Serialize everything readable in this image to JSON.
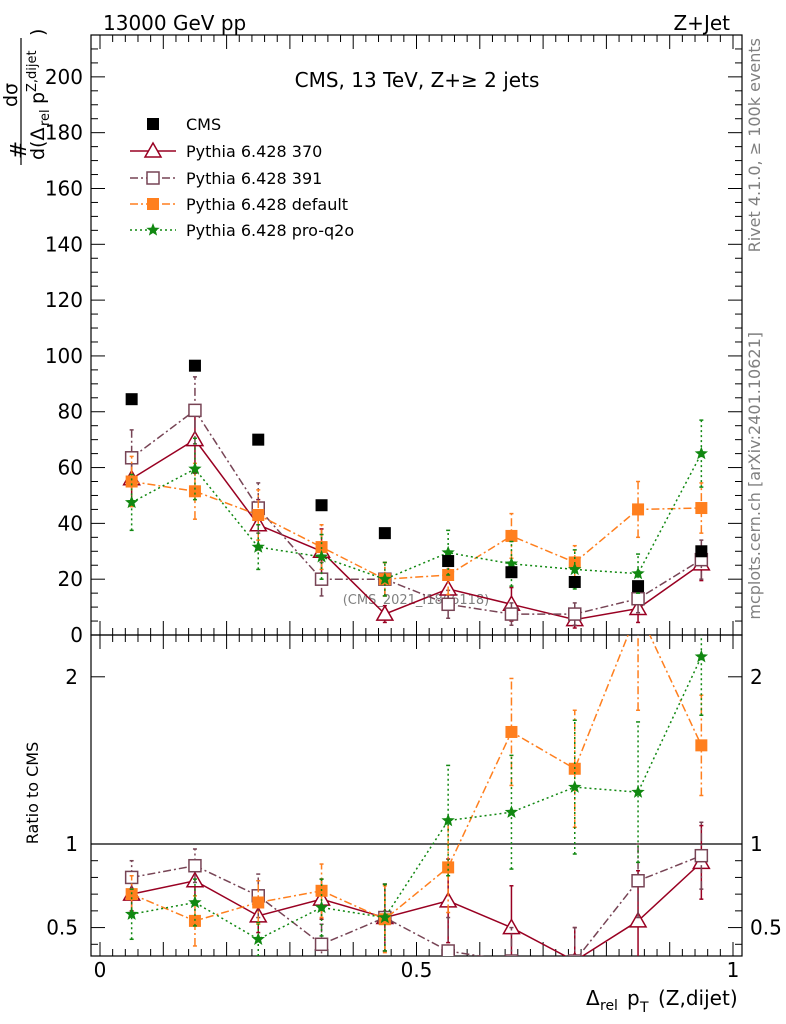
{
  "header": {
    "left": "13000 GeV pp",
    "right": "Z+Jet"
  },
  "side": {
    "rivet": "Rivet 4.1.0, ≥ 100k events",
    "mcplots": "mcplots.cern.ch [arXiv:2401.10621]"
  },
  "chart_data": {
    "type": "line",
    "title": "CMS, 13 TeV, Z+≥ 2 jets",
    "watermark": "(CMS_2021_I1866118)",
    "xlabel": "Δrel pT (Z,dijet)",
    "xlabel_parts": {
      "delta": "Δ",
      "rel": "rel",
      "p": "p",
      "T": "T",
      "rest": "(Z,dijet)"
    },
    "ylabel_parts": {
      "hash": "#",
      "dsigma": "dσ",
      "d": "d(Δ",
      "rel": "rel",
      "p": "p",
      "sup": "Z,dijet",
      "close": ")"
    },
    "xlim": [
      0,
      1
    ],
    "ylim": [
      0,
      215
    ],
    "x_ticks": [
      "0",
      "0.5",
      "1"
    ],
    "y_ticks": [
      "0",
      "20",
      "40",
      "60",
      "80",
      "100",
      "120",
      "140",
      "160",
      "180",
      "200"
    ],
    "x": [
      0.05,
      0.15,
      0.25,
      0.35,
      0.45,
      0.55,
      0.65,
      0.75,
      0.85,
      0.95
    ],
    "series": [
      {
        "name": "CMS",
        "color": "#000000",
        "style": "points",
        "marker": "square-filled",
        "values": [
          84.5,
          96.5,
          70,
          46.5,
          36.5,
          26.5,
          22.5,
          19,
          17.5,
          30
        ],
        "errors": [
          1,
          1,
          1,
          1,
          1,
          1,
          1,
          1,
          1,
          1
        ]
      },
      {
        "name": "Pythia 6.428 370",
        "color": "#990022",
        "style": "solid",
        "marker": "triangle-open",
        "values": [
          56,
          70,
          39.5,
          30,
          7.5,
          16.5,
          11,
          5.5,
          9.5,
          25.5
        ],
        "errors": [
          8,
          12,
          9,
          8,
          3,
          7,
          6,
          3,
          5,
          6
        ]
      },
      {
        "name": "Pythia 6.428 391",
        "color": "#774455",
        "style": "dashdot",
        "marker": "square-open",
        "values": [
          63.5,
          80.5,
          45.5,
          20,
          20,
          11,
          7.5,
          7.5,
          13,
          27
        ],
        "errors": [
          10,
          12,
          9,
          6,
          6,
          5,
          4,
          4,
          5,
          7
        ]
      },
      {
        "name": "Pythia 6.428 default",
        "color": "#ff7f1e",
        "style": "dashdot",
        "marker": "square-filled",
        "values": [
          55,
          51.5,
          43,
          31.5,
          20,
          21.5,
          35.5,
          26,
          45,
          45.5
        ],
        "errors": [
          9,
          10,
          9,
          8,
          6,
          7,
          8,
          6,
          10,
          9
        ]
      },
      {
        "name": "Pythia 6.428 pro-q2o",
        "color": "#118811",
        "style": "dotted",
        "marker": "star",
        "values": [
          47.5,
          59.5,
          31.5,
          28,
          20,
          29.5,
          25.5,
          23.5,
          22,
          65
        ],
        "errors": [
          10,
          11,
          8,
          8,
          6,
          8,
          8,
          7,
          7,
          12
        ]
      }
    ],
    "ratio": {
      "ylabel": "Ratio to CMS",
      "ylim": [
        0.33,
        2.25
      ],
      "y_ticks": [
        "0.5",
        "1",
        "2"
      ],
      "reference": 1,
      "series": [
        {
          "name": "Pythia 6.428 370",
          "values": [
            0.7,
            0.78,
            0.57,
            0.67,
            0.56,
            0.66,
            0.5,
            0.3,
            0.54,
            0.89
          ],
          "errors": [
            0.1,
            0.12,
            0.1,
            0.12,
            0.2,
            0.25,
            0.25,
            0.2,
            0.3,
            0.22
          ]
        },
        {
          "name": "Pythia 6.428 391",
          "values": [
            0.8,
            0.87,
            0.69,
            0.4,
            0.56,
            0.36,
            0.3,
            0.3,
            0.78,
            0.93
          ],
          "errors": [
            0.1,
            0.1,
            0.13,
            0.12,
            0.2,
            0.2,
            0.2,
            0.2,
            0.22,
            0.2
          ]
        },
        {
          "name": "Pythia 6.428 default",
          "values": [
            0.7,
            0.54,
            0.65,
            0.72,
            0.55,
            0.86,
            1.67,
            1.45,
            2.4,
            1.59
          ],
          "errors": [
            0.11,
            0.15,
            0.13,
            0.16,
            0.2,
            0.27,
            0.32,
            0.35,
            0.6,
            0.3
          ]
        },
        {
          "name": "Pythia 6.428 pro-q2o",
          "values": [
            0.58,
            0.65,
            0.43,
            0.62,
            0.56,
            1.14,
            1.19,
            1.34,
            1.31,
            2.12
          ],
          "errors": [
            0.15,
            0.14,
            0.1,
            0.17,
            0.2,
            0.33,
            0.34,
            0.4,
            0.42,
            0.35
          ]
        }
      ]
    }
  }
}
